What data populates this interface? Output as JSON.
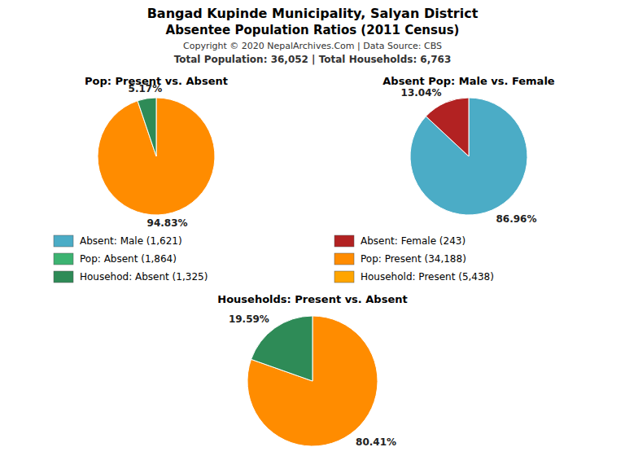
{
  "title": "Bangad Kupinde Municipality, Salyan District",
  "subtitle": "Absentee Population Ratios (2011 Census)",
  "annotations": [
    "Copyright © 2020 NepalArchives.Com | Data Source: CBS",
    "Total Population: 36,052 | Total Households: 6,763"
  ],
  "series": [
    {
      "name": "Absent: Male (1,621)",
      "color": "#4BACC6"
    },
    {
      "name": "Pop: Absent (1,864)",
      "color": "#3CB371"
    },
    {
      "name": "Househod: Absent (1,325)",
      "color": "#2E8B57"
    },
    {
      "name": "Absent: Female (243)",
      "color": "#B22222"
    },
    {
      "name": "Pop: Present (34,188)",
      "color": "#FF8C00"
    },
    {
      "name": "Household: Present (5,438)",
      "color": "#FFA500"
    }
  ],
  "chart_data": [
    {
      "type": "pie",
      "title": "Pop: Present vs. Absent",
      "values": [
        94.83,
        5.17
      ],
      "value_labels": [
        "94.83%",
        "5.17%"
      ],
      "colors": [
        "#FF8C00",
        "#2E8B57"
      ],
      "data_labels": true
    },
    {
      "type": "pie",
      "title": "Absent Pop: Male vs. Female",
      "values": [
        86.96,
        13.04
      ],
      "value_labels": [
        "86.96%",
        "13.04%"
      ],
      "colors": [
        "#4BACC6",
        "#B22222"
      ],
      "data_labels": true
    },
    {
      "type": "pie",
      "title": "Households: Present vs. Absent",
      "values": [
        80.41,
        19.59
      ],
      "value_labels": [
        "80.41%",
        "19.59%"
      ],
      "colors": [
        "#FF8C00",
        "#2E8B57"
      ],
      "data_labels": true
    }
  ]
}
